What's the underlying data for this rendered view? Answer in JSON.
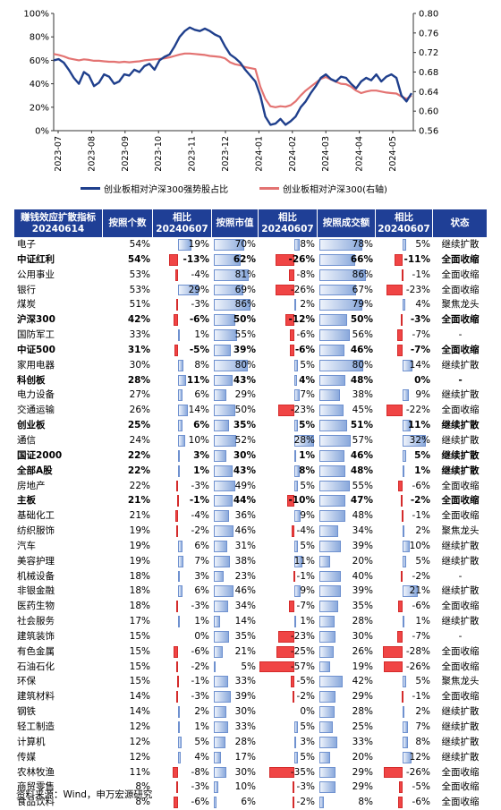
{
  "chart_data": {
    "type": "line",
    "x_ticks": [
      "2023-07",
      "2023-08",
      "2023-09",
      "2023-10",
      "2023-11",
      "2023-12",
      "2024-01",
      "2024-02",
      "2024-03",
      "2024-04",
      "2024-05"
    ],
    "y_left_ticks": [
      "100%",
      "80%",
      "60%",
      "40%",
      "20%",
      "0%"
    ],
    "y_right_ticks": [
      "0.80",
      "0.76",
      "0.72",
      "0.68",
      "0.64",
      "0.60",
      "0.56"
    ],
    "y_left_range": [
      0,
      100
    ],
    "y_right_range": [
      0.56,
      0.8
    ],
    "grid": false,
    "legend_position": "bottom",
    "series": [
      {
        "name": "创业板相对沪深300强势股占比",
        "axis": "left",
        "color": "#1f3f8c",
        "values": [
          60,
          61,
          58,
          52,
          45,
          40,
          50,
          47,
          38,
          41,
          48,
          46,
          40,
          42,
          48,
          47,
          52,
          50,
          55,
          57,
          52,
          60,
          63,
          65,
          72,
          80,
          85,
          88,
          86,
          85,
          87,
          85,
          82,
          80,
          72,
          65,
          62,
          58,
          52,
          47,
          42,
          30,
          12,
          5,
          6,
          10,
          5,
          8,
          12,
          20,
          25,
          32,
          38,
          45,
          48,
          44,
          42,
          46,
          45,
          40,
          36,
          42,
          45,
          43,
          48,
          42,
          46,
          48,
          45,
          30,
          25,
          32
        ]
      },
      {
        "name": "创业板相对沪深300(右轴)",
        "axis": "right",
        "color": "#e37372",
        "values": [
          0.717,
          0.715,
          0.712,
          0.708,
          0.706,
          0.704,
          0.706,
          0.705,
          0.703,
          0.703,
          0.702,
          0.701,
          0.701,
          0.7,
          0.701,
          0.7,
          0.701,
          0.702,
          0.704,
          0.705,
          0.706,
          0.707,
          0.708,
          0.71,
          0.713,
          0.716,
          0.718,
          0.718,
          0.717,
          0.716,
          0.715,
          0.713,
          0.712,
          0.711,
          0.708,
          0.7,
          0.696,
          0.694,
          0.69,
          0.688,
          0.686,
          0.65,
          0.625,
          0.61,
          0.608,
          0.61,
          0.609,
          0.612,
          0.62,
          0.632,
          0.642,
          0.65,
          0.658,
          0.666,
          0.67,
          0.665,
          0.66,
          0.656,
          0.655,
          0.65,
          0.642,
          0.637,
          0.64,
          0.642,
          0.642,
          0.64,
          0.638,
          0.637,
          0.636,
          0.63,
          0.625,
          0.632
        ]
      }
    ]
  },
  "table": {
    "headers": [
      {
        "line1": "赚钱效应扩散指标",
        "line2": "20240614"
      },
      {
        "line1": "按照个数",
        "line2": ""
      },
      {
        "line1": "相比",
        "line2": "20240607"
      },
      {
        "line1": "按照市值",
        "line2": ""
      },
      {
        "line1": "相比",
        "line2": "20240607"
      },
      {
        "line1": "按照成交额",
        "line2": ""
      },
      {
        "line1": "相比",
        "line2": "20240607"
      },
      {
        "line1": "状态",
        "line2": ""
      }
    ],
    "rows": [
      {
        "name": "电子",
        "bold": false,
        "count": 54,
        "count_chg": 19,
        "mcap": 70,
        "mcap_chg": 8,
        "turnover": 78,
        "turnover_chg": 5,
        "status": "继续扩散"
      },
      {
        "name": "中证红利",
        "bold": true,
        "count": 54,
        "count_chg": -13,
        "mcap": 62,
        "mcap_chg": -26,
        "turnover": 66,
        "turnover_chg": -11,
        "status": "全面收缩"
      },
      {
        "name": "公用事业",
        "bold": false,
        "count": 53,
        "count_chg": -4,
        "mcap": 81,
        "mcap_chg": -8,
        "turnover": 86,
        "turnover_chg": -1,
        "status": "全面收缩"
      },
      {
        "name": "银行",
        "bold": false,
        "count": 53,
        "count_chg": 29,
        "mcap": 69,
        "mcap_chg": -26,
        "turnover": 67,
        "turnover_chg": -23,
        "status": "全面收缩"
      },
      {
        "name": "煤炭",
        "bold": false,
        "count": 51,
        "count_chg": -3,
        "mcap": 86,
        "mcap_chg": 2,
        "turnover": 79,
        "turnover_chg": 4,
        "status": "聚焦龙头"
      },
      {
        "name": "沪深300",
        "bold": true,
        "count": 42,
        "count_chg": -6,
        "mcap": 50,
        "mcap_chg": -12,
        "turnover": 50,
        "turnover_chg": -3,
        "status": "全面收缩"
      },
      {
        "name": "国防军工",
        "bold": false,
        "count": 33,
        "count_chg": 1,
        "mcap": 55,
        "mcap_chg": -6,
        "turnover": 56,
        "turnover_chg": -7,
        "status": "-"
      },
      {
        "name": "中证500",
        "bold": true,
        "count": 31,
        "count_chg": -5,
        "mcap": 39,
        "mcap_chg": -6,
        "turnover": 46,
        "turnover_chg": -7,
        "status": "全面收缩"
      },
      {
        "name": "家用电器",
        "bold": false,
        "count": 30,
        "count_chg": 8,
        "mcap": 80,
        "mcap_chg": 5,
        "turnover": 80,
        "turnover_chg": 14,
        "status": "继续扩散"
      },
      {
        "name": "科创板",
        "bold": true,
        "count": 28,
        "count_chg": 11,
        "mcap": 43,
        "mcap_chg": 4,
        "turnover": 48,
        "turnover_chg": 0,
        "status": "-"
      },
      {
        "name": "电力设备",
        "bold": false,
        "count": 27,
        "count_chg": 6,
        "mcap": 29,
        "mcap_chg": 7,
        "turnover": 38,
        "turnover_chg": 9,
        "status": "继续扩散"
      },
      {
        "name": "交通运输",
        "bold": false,
        "count": 26,
        "count_chg": 14,
        "mcap": 50,
        "mcap_chg": -23,
        "turnover": 45,
        "turnover_chg": -22,
        "status": "全面收缩"
      },
      {
        "name": "创业板",
        "bold": true,
        "count": 25,
        "count_chg": 6,
        "mcap": 35,
        "mcap_chg": 5,
        "turnover": 51,
        "turnover_chg": 11,
        "status": "继续扩散"
      },
      {
        "name": "通信",
        "bold": false,
        "count": 24,
        "count_chg": 10,
        "mcap": 52,
        "mcap_chg": 28,
        "turnover": 57,
        "turnover_chg": 32,
        "status": "继续扩散"
      },
      {
        "name": "国证2000",
        "bold": true,
        "count": 22,
        "count_chg": 3,
        "mcap": 30,
        "mcap_chg": 1,
        "turnover": 46,
        "turnover_chg": 5,
        "status": "继续扩散"
      },
      {
        "name": "全部A股",
        "bold": true,
        "count": 22,
        "count_chg": 1,
        "mcap": 43,
        "mcap_chg": 8,
        "turnover": 48,
        "turnover_chg": 1,
        "status": "继续扩散"
      },
      {
        "name": "房地产",
        "bold": false,
        "count": 22,
        "count_chg": -3,
        "mcap": 49,
        "mcap_chg": 5,
        "turnover": 55,
        "turnover_chg": -6,
        "status": "全面收缩"
      },
      {
        "name": "主板",
        "bold": true,
        "count": 21,
        "count_chg": -1,
        "mcap": 44,
        "mcap_chg": -10,
        "turnover": 47,
        "turnover_chg": -2,
        "status": "全面收缩"
      },
      {
        "name": "基础化工",
        "bold": false,
        "count": 21,
        "count_chg": -4,
        "mcap": 36,
        "mcap_chg": 9,
        "turnover": 48,
        "turnover_chg": -1,
        "status": "全面收缩"
      },
      {
        "name": "纺织服饰",
        "bold": false,
        "count": 19,
        "count_chg": -2,
        "mcap": 46,
        "mcap_chg": -4,
        "turnover": 34,
        "turnover_chg": 2,
        "status": "聚焦龙头"
      },
      {
        "name": "汽车",
        "bold": false,
        "count": 19,
        "count_chg": 6,
        "mcap": 31,
        "mcap_chg": 5,
        "turnover": 39,
        "turnover_chg": 10,
        "status": "继续扩散"
      },
      {
        "name": "美容护理",
        "bold": false,
        "count": 19,
        "count_chg": 7,
        "mcap": 38,
        "mcap_chg": 11,
        "turnover": 20,
        "turnover_chg": 5,
        "status": "继续扩散"
      },
      {
        "name": "机械设备",
        "bold": false,
        "count": 18,
        "count_chg": 3,
        "mcap": 23,
        "mcap_chg": -1,
        "turnover": 40,
        "turnover_chg": -2,
        "status": "-"
      },
      {
        "name": "非银金融",
        "bold": false,
        "count": 18,
        "count_chg": 6,
        "mcap": 46,
        "mcap_chg": 9,
        "turnover": 39,
        "turnover_chg": 21,
        "status": "继续扩散"
      },
      {
        "name": "医药生物",
        "bold": false,
        "count": 18,
        "count_chg": -3,
        "mcap": 34,
        "mcap_chg": -7,
        "turnover": 35,
        "turnover_chg": -6,
        "status": "全面收缩"
      },
      {
        "name": "社会服务",
        "bold": false,
        "count": 17,
        "count_chg": 1,
        "mcap": 14,
        "mcap_chg": 1,
        "turnover": 28,
        "turnover_chg": 1,
        "status": "继续扩散"
      },
      {
        "name": "建筑装饰",
        "bold": false,
        "count": 15,
        "count_chg": 0,
        "mcap": 35,
        "mcap_chg": -23,
        "turnover": 30,
        "turnover_chg": -7,
        "status": "-"
      },
      {
        "name": "有色金属",
        "bold": false,
        "count": 15,
        "count_chg": -6,
        "mcap": 21,
        "mcap_chg": -25,
        "turnover": 26,
        "turnover_chg": -28,
        "status": "全面收缩"
      },
      {
        "name": "石油石化",
        "bold": false,
        "count": 15,
        "count_chg": -2,
        "mcap": 5,
        "mcap_chg": -57,
        "turnover": 19,
        "turnover_chg": -26,
        "status": "全面收缩"
      },
      {
        "name": "环保",
        "bold": false,
        "count": 15,
        "count_chg": -1,
        "mcap": 33,
        "mcap_chg": -5,
        "turnover": 42,
        "turnover_chg": 5,
        "status": "聚焦龙头"
      },
      {
        "name": "建筑材料",
        "bold": false,
        "count": 14,
        "count_chg": -3,
        "mcap": 39,
        "mcap_chg": -2,
        "turnover": 29,
        "turnover_chg": -1,
        "status": "全面收缩"
      },
      {
        "name": "钢铁",
        "bold": false,
        "count": 14,
        "count_chg": 2,
        "mcap": 30,
        "mcap_chg": 0,
        "turnover": 28,
        "turnover_chg": 2,
        "status": "继续扩散"
      },
      {
        "name": "轻工制造",
        "bold": false,
        "count": 12,
        "count_chg": 1,
        "mcap": 33,
        "mcap_chg": 5,
        "turnover": 25,
        "turnover_chg": 7,
        "status": "继续扩散"
      },
      {
        "name": "计算机",
        "bold": false,
        "count": 12,
        "count_chg": 5,
        "mcap": 28,
        "mcap_chg": 3,
        "turnover": 33,
        "turnover_chg": 8,
        "status": "继续扩散"
      },
      {
        "name": "传媒",
        "bold": false,
        "count": 12,
        "count_chg": 4,
        "mcap": 17,
        "mcap_chg": 5,
        "turnover": 20,
        "turnover_chg": 12,
        "status": "继续扩散"
      },
      {
        "name": "农林牧渔",
        "bold": false,
        "count": 11,
        "count_chg": -8,
        "mcap": 30,
        "mcap_chg": -35,
        "turnover": 29,
        "turnover_chg": -26,
        "status": "全面收缩"
      },
      {
        "name": "商贸零售",
        "bold": false,
        "count": 8,
        "count_chg": -3,
        "mcap": 10,
        "mcap_chg": -3,
        "turnover": 29,
        "turnover_chg": -5,
        "status": "全面收缩"
      },
      {
        "name": "食品饮料",
        "bold": false,
        "count": 8,
        "count_chg": -6,
        "mcap": 6,
        "mcap_chg": -2,
        "turnover": 8,
        "turnover_chg": -6,
        "status": "全面收缩"
      }
    ]
  },
  "source": "资料来源：Wind，申万宏源研究",
  "colors": {
    "header_bg": "#1f3f96",
    "positive_bar": "#8aa9dc",
    "negative_bar": "#f04545"
  }
}
